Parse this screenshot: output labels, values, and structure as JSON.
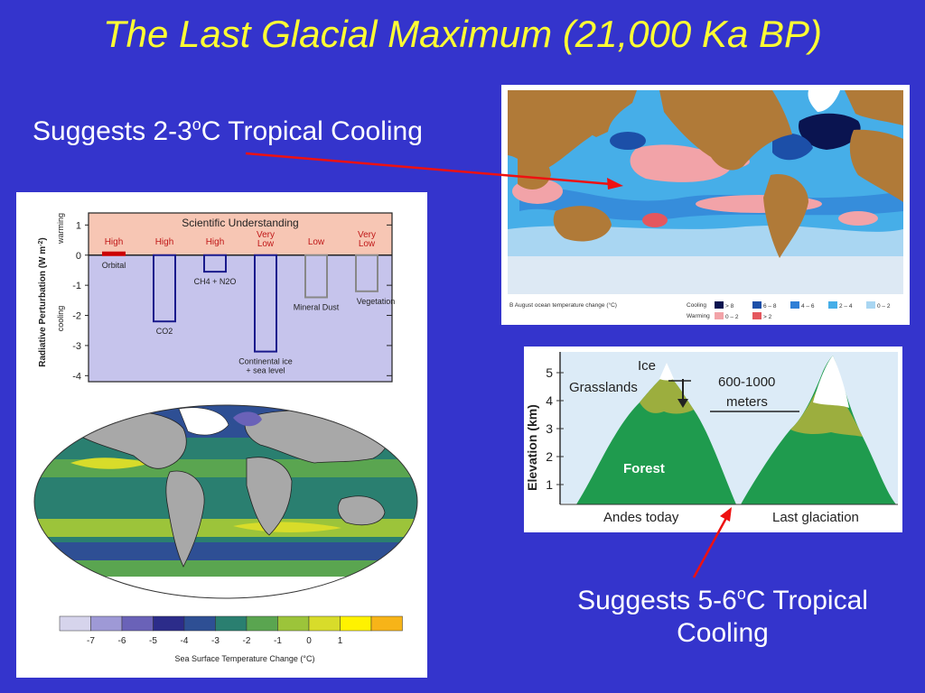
{
  "slide": {
    "title": "The Last Glacial Maximum (21,000 Ka BP)",
    "caption_top": {
      "pre": "Suggests 2-3",
      "sup": "o",
      "post": "C Tropical Cooling"
    },
    "caption_bottom": {
      "pre": "Suggests 5-6",
      "sup": "o",
      "post": "C Tropical",
      "line2": "Cooling"
    }
  },
  "ocean_map": {
    "legend_title": "B  August ocean temperature change (°C)",
    "cooling_label": "Cooling",
    "warming_label": "Warming",
    "cooling_bins": [
      {
        "label": "> 8",
        "color": "#0a1450"
      },
      {
        "label": "6 – 8",
        "color": "#1c4fa8"
      },
      {
        "label": "4 – 6",
        "color": "#2f7fd6"
      },
      {
        "label": "2 – 4",
        "color": "#46aee8"
      },
      {
        "label": "0 – 2",
        "color": "#a9d6f2"
      }
    ],
    "warming_bins": [
      {
        "label": "0 – 2",
        "color": "#f2a3a8"
      },
      {
        "label": "> 2",
        "color": "#e4575e"
      }
    ]
  },
  "andes": {
    "axis_label": "Elevation (km)",
    "ticks": [
      "1",
      "2",
      "3",
      "4",
      "5"
    ],
    "labels": {
      "ice": "Ice",
      "grasslands": "Grasslands",
      "forest": "Forest",
      "shift_line1": "600-1000",
      "shift_line2": "meters",
      "today": "Andes today",
      "glacial": "Last glaciation"
    }
  },
  "chart_data": {
    "type": "bar",
    "title": "Scientific Understanding",
    "ylabel": "Radiative Perturbation (W m-2)",
    "ylabel_parts": {
      "main": "Radiative Perturbation (W m",
      "sup": "-2",
      "close": ")"
    },
    "y_side_labels": {
      "positive": "warming",
      "negative": "cooling"
    },
    "ylim": [
      -4.2,
      1.4
    ],
    "yticks": [
      "1",
      "0",
      "-1",
      "-2",
      "-3",
      "-4"
    ],
    "categories": [
      "Orbital",
      "CO2",
      "CH4 + N2O",
      "Mineral Dust",
      "Continental ice + sea level",
      "Vegetation"
    ],
    "category_labels": [
      {
        "lines": [
          "Orbital"
        ]
      },
      {
        "lines": [
          "CO2"
        ]
      },
      {
        "lines": [
          "CH4 + N2O"
        ]
      },
      {
        "lines": [
          "Mineral Dust"
        ]
      },
      {
        "lines": [
          "Continental ice",
          "+ sea level"
        ]
      },
      {
        "lines": [
          "Vegetation"
        ]
      }
    ],
    "values": [
      0.05,
      -2.2,
      -0.55,
      -1.4,
      -3.2,
      -1.2
    ],
    "understanding": [
      [
        "High"
      ],
      [
        "High"
      ],
      [
        "High"
      ],
      [
        "Low"
      ],
      [
        "Very",
        "Low"
      ],
      [
        "Very",
        "Low"
      ]
    ],
    "understanding_columns": [
      0,
      1,
      2,
      4,
      3,
      5
    ],
    "bar_colors": [
      "#cc0000",
      "#1a1a8c",
      "#1a1a8c",
      "#888888",
      "#1a1a8c",
      "#888888"
    ]
  },
  "sst_legend": {
    "label": "Sea Surface Temperature Change (°C)",
    "ticks": [
      "-7",
      "-6",
      "-5",
      "-4",
      "-3",
      "-2",
      "-1",
      "0",
      "1"
    ],
    "colors": [
      "#d6d4ec",
      "#9e99d6",
      "#6a62b8",
      "#2c2c8a",
      "#2e4f94",
      "#2a7f70",
      "#5aa550",
      "#9cc43a",
      "#d8dc2a",
      "#fff200",
      "#f7b418"
    ]
  }
}
